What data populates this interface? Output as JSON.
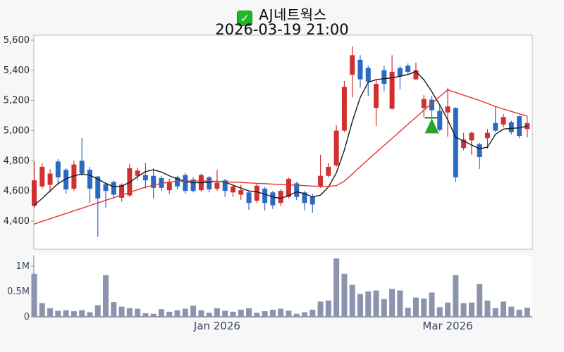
{
  "page": {
    "background": "#f7f7f8"
  },
  "header": {
    "checkbox_glyph": "✓",
    "title": "AJ네트웍스",
    "subtitle": "2026-03-19 21:00"
  },
  "chart_data": {
    "type": "candlestick",
    "title": "AJ네트웍스",
    "timestamp": "2026-03-19 21:00",
    "legend_position": "none",
    "grid": false,
    "price_axis": {
      "range": [
        4180,
        5650
      ],
      "ticks": [
        {
          "label": "5,600",
          "value": 5600
        },
        {
          "label": "5,400",
          "value": 5400
        },
        {
          "label": "5,200",
          "value": 5200
        },
        {
          "label": "5,000",
          "value": 5000
        },
        {
          "label": "4,800",
          "value": 4800
        },
        {
          "label": "4,600",
          "value": 4600
        },
        {
          "label": "4,400",
          "value": 4400
        }
      ]
    },
    "volume_axis": {
      "unit": "millions",
      "ticks": [
        {
          "label": "1M",
          "value": 1
        },
        {
          "label": "0.5M",
          "value": 0.5
        },
        {
          "label": "0",
          "value": 0
        }
      ]
    },
    "x_axis": {
      "labels": [
        {
          "label": "Jan 2026",
          "index": 23
        },
        {
          "label": "Mar 2026",
          "index": 52
        }
      ]
    },
    "ohlc": [
      [
        4500,
        4795,
        4485,
        4670
      ],
      [
        4630,
        4785,
        4615,
        4760
      ],
      [
        4640,
        4745,
        4590,
        4715
      ],
      [
        4795,
        4810,
        4640,
        4690
      ],
      [
        4740,
        4750,
        4580,
        4610
      ],
      [
        4615,
        4800,
        4600,
        4775
      ],
      [
        4800,
        4950,
        4700,
        4715
      ],
      [
        4740,
        4760,
        4520,
        4615
      ],
      [
        4695,
        4700,
        4295,
        4550
      ],
      [
        4645,
        4655,
        4490,
        4600
      ],
      [
        4660,
        4670,
        4555,
        4575
      ],
      [
        4555,
        4650,
        4530,
        4640
      ],
      [
        4570,
        4780,
        4560,
        4750
      ],
      [
        4700,
        4755,
        4670,
        4735
      ],
      [
        4705,
        4785,
        4615,
        4670
      ],
      [
        4700,
        4750,
        4550,
        4620
      ],
      [
        4685,
        4700,
        4600,
        4620
      ],
      [
        4605,
        4680,
        4580,
        4655
      ],
      [
        4690,
        4700,
        4610,
        4630
      ],
      [
        4705,
        4720,
        4580,
        4600
      ],
      [
        4675,
        4690,
        4590,
        4600
      ],
      [
        4605,
        4715,
        4595,
        4705
      ],
      [
        4690,
        4700,
        4590,
        4610
      ],
      [
        4615,
        4740,
        4600,
        4655
      ],
      [
        4670,
        4680,
        4560,
        4600
      ],
      [
        4590,
        4640,
        4560,
        4630
      ],
      [
        4575,
        4640,
        4540,
        4605
      ],
      [
        4590,
        4600,
        4475,
        4520
      ],
      [
        4535,
        4645,
        4520,
        4635
      ],
      [
        4615,
        4625,
        4470,
        4520
      ],
      [
        4590,
        4600,
        4480,
        4505
      ],
      [
        4520,
        4610,
        4500,
        4600
      ],
      [
        4560,
        4690,
        4550,
        4680
      ],
      [
        4650,
        4660,
        4540,
        4560
      ],
      [
        4590,
        4600,
        4470,
        4520
      ],
      [
        4560,
        4580,
        4455,
        4510
      ],
      [
        4630,
        4840,
        4620,
        4700
      ],
      [
        4700,
        4785,
        4690,
        4760
      ],
      [
        4770,
        5035,
        4760,
        5000
      ],
      [
        5000,
        5330,
        4990,
        5290
      ],
      [
        5370,
        5560,
        5220,
        5500
      ],
      [
        5470,
        5500,
        5285,
        5340
      ],
      [
        5415,
        5430,
        5230,
        5325
      ],
      [
        5150,
        5340,
        5030,
        5310
      ],
      [
        5400,
        5430,
        5260,
        5310
      ],
      [
        5145,
        5500,
        5140,
        5390
      ],
      [
        5415,
        5430,
        5275,
        5360
      ],
      [
        5430,
        5445,
        5370,
        5390
      ],
      [
        5340,
        5450,
        5335,
        5400
      ],
      [
        5150,
        5235,
        5090,
        5210
      ],
      [
        5205,
        5230,
        5085,
        5135
      ],
      [
        5130,
        5175,
        4995,
        5005
      ],
      [
        5120,
        5285,
        4960,
        5160
      ],
      [
        5150,
        5155,
        4660,
        4690
      ],
      [
        4885,
        4985,
        4870,
        4940
      ],
      [
        4935,
        4995,
        4840,
        4985
      ],
      [
        4910,
        4920,
        4745,
        4825
      ],
      [
        4950,
        5010,
        4880,
        4985
      ],
      [
        5050,
        5160,
        4990,
        5000
      ],
      [
        5040,
        5110,
        5020,
        5090
      ],
      [
        5055,
        5065,
        4975,
        4990
      ],
      [
        5095,
        5100,
        4950,
        4965
      ],
      [
        5010,
        5095,
        4955,
        5050
      ]
    ],
    "volumes_m": [
      0.85,
      0.27,
      0.17,
      0.12,
      0.13,
      0.11,
      0.13,
      0.09,
      0.23,
      0.82,
      0.29,
      0.2,
      0.17,
      0.16,
      0.07,
      0.06,
      0.15,
      0.1,
      0.13,
      0.16,
      0.22,
      0.13,
      0.08,
      0.17,
      0.12,
      0.1,
      0.14,
      0.17,
      0.08,
      0.11,
      0.14,
      0.16,
      0.12,
      0.06,
      0.09,
      0.14,
      0.3,
      0.32,
      1.15,
      0.85,
      0.63,
      0.45,
      0.5,
      0.52,
      0.35,
      0.55,
      0.52,
      0.18,
      0.38,
      0.36,
      0.48,
      0.19,
      0.28,
      0.82,
      0.27,
      0.28,
      0.65,
      0.32,
      0.17,
      0.3,
      0.2,
      0.14,
      0.18
    ],
    "ma_fast": [
      4505,
      4550,
      4600,
      4648,
      4680,
      4700,
      4712,
      4704,
      4678,
      4650,
      4628,
      4632,
      4656,
      4695,
      4728,
      4740,
      4725,
      4700,
      4680,
      4662,
      4655,
      4654,
      4658,
      4664,
      4658,
      4638,
      4618,
      4600,
      4594,
      4578,
      4560,
      4550,
      4570,
      4594,
      4582,
      4560,
      4572,
      4626,
      4720,
      4870,
      5060,
      5220,
      5320,
      5338,
      5344,
      5350,
      5360,
      5372,
      5392,
      5338,
      5258,
      5170,
      5072,
      4955,
      4932,
      4905,
      4880,
      4890,
      4975,
      5010,
      5015,
      5018,
      5030
    ],
    "ma_slow": [
      4380,
      4398,
      4415,
      4433,
      4450,
      4468,
      4485,
      4503,
      4520,
      4538,
      4555,
      4572,
      4590,
      4608,
      4625,
      4638,
      4650,
      4658,
      4663,
      4665,
      4666,
      4666,
      4665,
      4663,
      4661,
      4658,
      4656,
      4653,
      4650,
      4648,
      4645,
      4642,
      4640,
      4638,
      4635,
      4632,
      4630,
      4631,
      4635,
      4665,
      4712,
      4760,
      4808,
      4855,
      4902,
      4948,
      4995,
      5042,
      5088,
      5135,
      5180,
      5226,
      5270,
      5253,
      5235,
      5218,
      5200,
      5180,
      5160,
      5143,
      5127,
      5111,
      5096
    ],
    "marker": {
      "shape": "triangle-up",
      "index": 50,
      "apex_value": 5085,
      "base_value": 4982
    },
    "colors": {
      "up": "#d03030",
      "down": "#2b6ac3",
      "ma_fast": "#1a1a1a",
      "ma_slow": "#e53434",
      "volume": "#8c94ad",
      "marker": "#2aa32a",
      "marker_line": "#2f9b2f",
      "axis_text": "#3a4663",
      "price_text": "#26282c",
      "border": "#b5b8bb",
      "vol_axis": "#7a8196"
    }
  }
}
